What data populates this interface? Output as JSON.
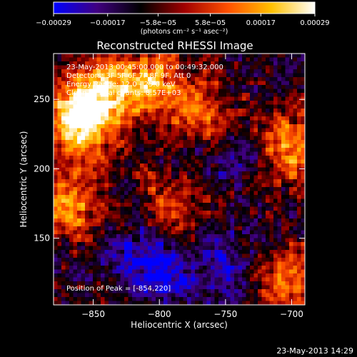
{
  "chart_data": {
    "type": "heatmap",
    "title": "Reconstructed RHESSI Image",
    "xlabel": "Heliocentric X (arcsec)",
    "ylabel": "Heliocentric Y (arcsec)",
    "xlim": [
      -880,
      -690
    ],
    "ylim": [
      102,
      283
    ],
    "x_ticks": [
      -850,
      -800,
      -750,
      -700
    ],
    "x_tick_labels": [
      "−850",
      "−800",
      "−750",
      "−700"
    ],
    "y_ticks": [
      150,
      200,
      250
    ],
    "y_tick_labels": [
      "150",
      "200",
      "250"
    ],
    "colorbar": {
      "range": [
        -0.00029,
        0.00029
      ],
      "ticks": [
        -0.00029,
        -0.00017,
        -5.8e-05,
        5.8e-05,
        0.00017,
        0.00029
      ],
      "tick_labels": [
        "−0.00029",
        "−0.00017",
        "−5.8e−05",
        "5.8e−05",
        "0.00017",
        "0.00029"
      ],
      "unit_label": "(photons cm⁻² s⁻¹ asec⁻²)",
      "colors": [
        "#0000ff",
        "#400080",
        "#000000",
        "#a00000",
        "#ff5000",
        "#ffc000",
        "#ffffff"
      ]
    },
    "info_lines": [
      "23-May-2013 00:45:00.000 to 00:49:32.000",
      "Detectors: 3F 5F 6F 7F 8F 9F, Att 0",
      "Energy Range: 12.0 - 25.0 keV",
      "Clean     Total counts: 8.57E+03"
    ],
    "peak_label": "Position of Peak = [-854,220]",
    "peak_position": [
      -854,
      220
    ],
    "hot_regions": [
      {
        "x": -860,
        "y": 235,
        "intensity": 0.95
      },
      {
        "x": -868,
        "y": 175,
        "intensity": 0.6
      },
      {
        "x": -843,
        "y": 255,
        "intensity": 0.55
      },
      {
        "x": -808,
        "y": 262,
        "intensity": 0.6
      },
      {
        "x": -770,
        "y": 240,
        "intensity": 0.5
      },
      {
        "x": -700,
        "y": 215,
        "intensity": 0.6
      },
      {
        "x": -700,
        "y": 118,
        "intensity": 0.55
      },
      {
        "x": -790,
        "y": 178,
        "intensity": 0.4
      }
    ],
    "cold_regions": [
      {
        "x": -798,
        "y": 125,
        "intensity": 0.95
      },
      {
        "x": -750,
        "y": 132,
        "intensity": 0.7
      },
      {
        "x": -822,
        "y": 143,
        "intensity": 0.6
      },
      {
        "x": -740,
        "y": 205,
        "intensity": 0.45
      },
      {
        "x": -778,
        "y": 208,
        "intensity": 0.4
      }
    ]
  },
  "footer_timestamp": "23-May-2013 14:29"
}
